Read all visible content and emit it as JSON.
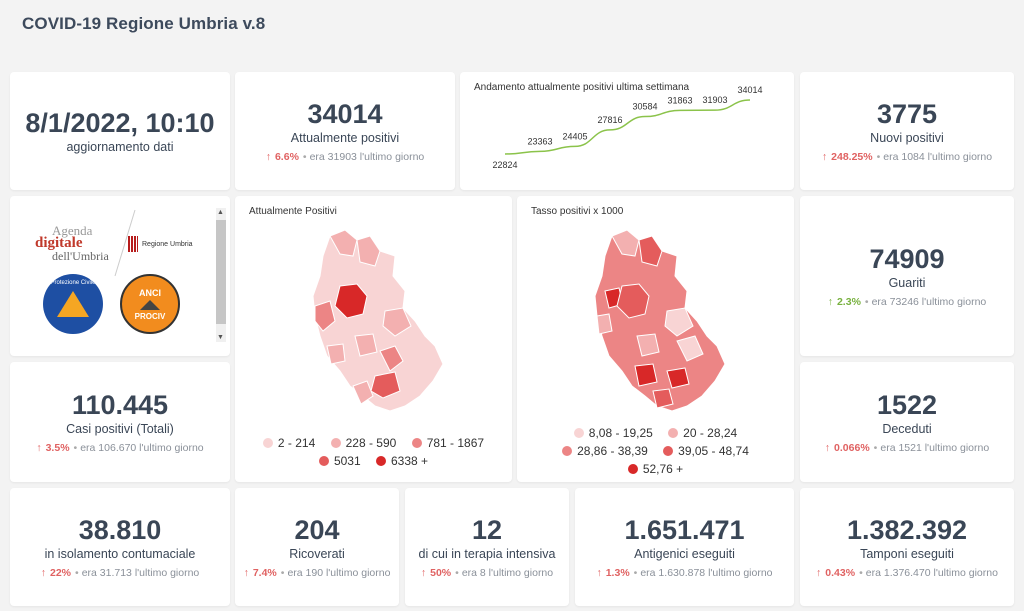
{
  "app_title": "COVID-19 Regione Umbria v.8",
  "colors": {
    "up_red": "#e06262",
    "up_green": "#78b13f",
    "line": "#8bc34a"
  },
  "kpis": {
    "date": {
      "value": "8/1/2022, 10:10",
      "label": "aggiornamento dati"
    },
    "attualmente_positivi": {
      "value": "34014",
      "label": "Attualmente positivi",
      "pct": "6.6%",
      "compare": "era 31903 l'ultimo giorno",
      "trend": "up-red"
    },
    "nuovi_positivi": {
      "value": "3775",
      "label": "Nuovi positivi",
      "pct": "248.25%",
      "compare": "era 1084 l'ultimo giorno",
      "trend": "up-red"
    },
    "guariti": {
      "value": "74909",
      "label": "Guariti",
      "pct": "2.3%",
      "compare": "era 73246 l'ultimo giorno",
      "trend": "up-green"
    },
    "casi_totali": {
      "value": "110.445",
      "label": "Casi positivi (Totali)",
      "pct": "3.5%",
      "compare": "era 106.670 l'ultimo giorno",
      "trend": "up-red"
    },
    "deceduti": {
      "value": "1522",
      "label": "Deceduti",
      "pct": "0.066%",
      "compare": "era 1521 l'ultimo giorno",
      "trend": "up-red"
    },
    "isolamento": {
      "value": "38.810",
      "label": "in isolamento contumaciale",
      "pct": "22%",
      "compare": "era 31.713 l'ultimo giorno",
      "trend": "up-red"
    },
    "ricoverati": {
      "value": "204",
      "label": "Ricoverati",
      "pct": "7.4%",
      "compare": "era 190 l'ultimo giorno",
      "trend": "up-red"
    },
    "terapia_intensiva": {
      "value": "12",
      "label": "di cui in terapia intensiva",
      "pct": "50%",
      "compare": "era 8 l'ultimo giorno",
      "trend": "up-red"
    },
    "antigenici": {
      "value": "1.651.471",
      "label": "Antigenici eseguiti",
      "pct": "1.3%",
      "compare": "era 1.630.878 l'ultimo giorno",
      "trend": "up-red"
    },
    "tamponi": {
      "value": "1.382.392",
      "label": "Tamponi eseguiti",
      "pct": "0.43%",
      "compare": "era 1.376.470 l'ultimo giorno",
      "trend": "up-red"
    }
  },
  "logos": {
    "agenda_line1": "Agenda",
    "agenda_line2": "digitale",
    "agenda_line3": "dell'Umbria",
    "regione": "Regione Umbria",
    "protezione": "Protezione Civile",
    "anci_top": "ANCI",
    "anci_bottom": "PROCIV"
  },
  "chart_data": {
    "type": "line",
    "title": "Andamento attualmente positivi ultima settimana",
    "values": [
      22824,
      23363,
      24405,
      27816,
      30584,
      31863,
      31903,
      34014
    ]
  },
  "map1": {
    "title": "Attualmente Positivi",
    "legend": [
      {
        "label": "2 - 214",
        "color": "#f8d4d4"
      },
      {
        "label": "228 - 590",
        "color": "#f3b0b0"
      },
      {
        "label": "781 - 1867",
        "color": "#ec8585"
      },
      {
        "label": "5031",
        "color": "#e45c5c"
      },
      {
        "label": "6338 +",
        "color": "#d82828"
      }
    ]
  },
  "map2": {
    "title": "Tasso positivi x 1000",
    "legend": [
      {
        "label": "8,08 - 19,25",
        "color": "#f8d4d4"
      },
      {
        "label": "20 - 28,24",
        "color": "#f3b0b0"
      },
      {
        "label": "28,86 - 38,39",
        "color": "#ec8585"
      },
      {
        "label": "39,05 - 48,74",
        "color": "#e45c5c"
      },
      {
        "label": "52,76 +",
        "color": "#d82828"
      }
    ]
  }
}
